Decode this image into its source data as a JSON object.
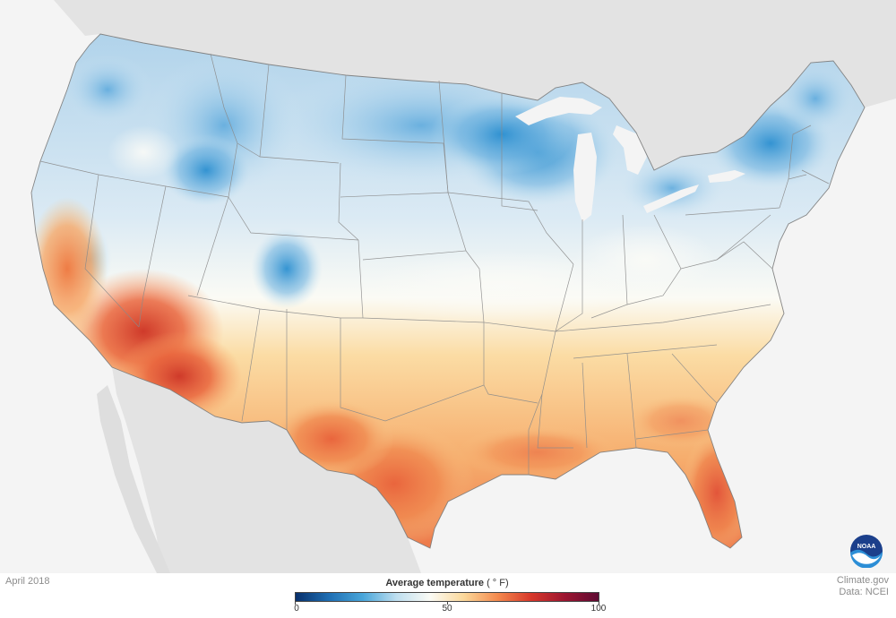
{
  "map": {
    "title": "Average temperature",
    "unit_label": "( ° F)",
    "period": "April 2018",
    "credit_line1": "Climate.gov",
    "credit_line2": "Data: NCEI",
    "logo_text": "NOAA",
    "colors": {
      "ocean": "#f4f4f4",
      "land_outside": "#e2e2e2",
      "state_border": "#8a8a8a",
      "cold": "#2b8fd0",
      "cool": "#a9cfe9",
      "neutral": "#f5f5f0",
      "warm": "#f8c98a",
      "hot": "#e9653d",
      "hottest": "#cf3a2a"
    }
  },
  "legend": {
    "min": 0,
    "mid": 50,
    "max": 100,
    "tick_labels": [
      "0",
      "50",
      "100"
    ],
    "gradient_stops": [
      "#08306b",
      "#1f6fb4",
      "#49a6da",
      "#bfdff0",
      "#fbfbf5",
      "#fbd89a",
      "#f48a4e",
      "#d7372a",
      "#9c1530",
      "#5f0a33"
    ]
  }
}
